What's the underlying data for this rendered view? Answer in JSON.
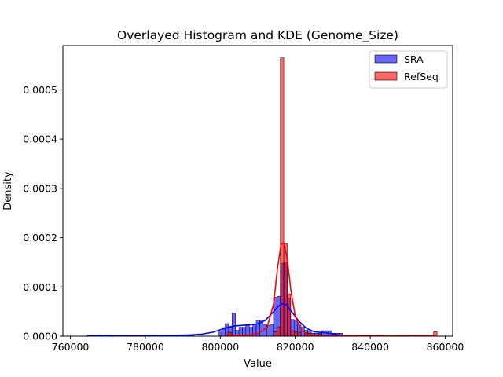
{
  "chart_data": {
    "type": "bar",
    "title": "Overlayed Histogram and KDE (Genome_Size)",
    "xlabel": "Value",
    "ylabel": "Density",
    "xlim": [
      758000,
      862000
    ],
    "ylim": [
      0,
      0.00059
    ],
    "x_ticks": [
      760000,
      780000,
      800000,
      820000,
      840000,
      860000
    ],
    "x_tick_labels": [
      "760000",
      "780000",
      "800000",
      "820000",
      "840000",
      "860000"
    ],
    "y_ticks": [
      0,
      0.0001,
      0.0002,
      0.0003,
      0.0004,
      0.0005
    ],
    "y_tick_labels": [
      "0.0000",
      "0.0001",
      "0.0002",
      "0.0003",
      "0.0004",
      "0.0005"
    ],
    "grid": false,
    "legend_position": "top-right",
    "series": [
      {
        "name": "SRA",
        "kind": "histogram",
        "color": "#0000ff",
        "bin_width": 920,
        "bins": [
          [
            764500,
            1.2e-06
          ],
          [
            765420,
            1.2e-06
          ],
          [
            766340,
            1.2e-06
          ],
          [
            767260,
            1.2e-06
          ],
          [
            768180,
            1.2e-06
          ],
          [
            769100,
            2.5e-06
          ],
          [
            770020,
            2.5e-06
          ],
          [
            770940,
            1.2e-06
          ],
          [
            775540,
            1.2e-06
          ],
          [
            778300,
            1.2e-06
          ],
          [
            780140,
            1.2e-06
          ],
          [
            785660,
            1.2e-06
          ],
          [
            787500,
            1.2e-06
          ],
          [
            791180,
            1.2e-06
          ],
          [
            792100,
            1.2e-06
          ],
          [
            799460,
            8.5e-06
          ],
          [
            800380,
            1.75e-05
          ],
          [
            801300,
            2.55e-05
          ],
          [
            802220,
            1.8e-05
          ],
          [
            803140,
            4.7e-05
          ],
          [
            804060,
            1.2e-05
          ],
          [
            804980,
            1.8e-05
          ],
          [
            805900,
            1.8e-05
          ],
          [
            806820,
            2.4e-05
          ],
          [
            807740,
            1.8e-05
          ],
          [
            808660,
            2.4e-05
          ],
          [
            809580,
            3.3e-05
          ],
          [
            810500,
            3.1e-05
          ],
          [
            811420,
            2.4e-05
          ],
          [
            812340,
            2.2e-05
          ],
          [
            813260,
            2.4e-05
          ],
          [
            814180,
            7.9e-05
          ],
          [
            815100,
            8.1e-05
          ],
          [
            816020,
            0.000148
          ],
          [
            816940,
            0.000149
          ],
          [
            817860,
            7.7e-05
          ],
          [
            818780,
            3.4e-05
          ],
          [
            819700,
            3.3e-05
          ],
          [
            820620,
            2.3e-05
          ],
          [
            821540,
            1.8e-05
          ],
          [
            822460,
            1.2e-05
          ],
          [
            823380,
            1.1e-05
          ],
          [
            824300,
            6e-06
          ],
          [
            825220,
            6e-06
          ],
          [
            826140,
            6e-06
          ],
          [
            827060,
            1.1e-05
          ],
          [
            827980,
            1.1e-05
          ],
          [
            828900,
            1.1e-05
          ],
          [
            829820,
            6e-06
          ],
          [
            830740,
            6e-06
          ],
          [
            831660,
            6e-06
          ]
        ],
        "kde": [
          [
            764500,
            1e-06
          ],
          [
            768000,
            1.5e-06
          ],
          [
            772000,
            1.2e-06
          ],
          [
            776000,
            1e-06
          ],
          [
            780000,
            1e-06
          ],
          [
            784000,
            1.3e-06
          ],
          [
            788000,
            1.6e-06
          ],
          [
            792000,
            2.5e-06
          ],
          [
            795000,
            4e-06
          ],
          [
            798000,
            8e-06
          ],
          [
            800000,
            1.3e-05
          ],
          [
            802000,
            1.8e-05
          ],
          [
            804000,
            2.1e-05
          ],
          [
            806000,
            2.2e-05
          ],
          [
            808000,
            2.3e-05
          ],
          [
            810000,
            2.5e-05
          ],
          [
            812000,
            3.2e-05
          ],
          [
            814000,
            4.8e-05
          ],
          [
            815500,
            6.1e-05
          ],
          [
            816500,
            6.6e-05
          ],
          [
            817500,
            6.4e-05
          ],
          [
            819000,
            5e-05
          ],
          [
            821000,
            3e-05
          ],
          [
            823000,
            1.6e-05
          ],
          [
            825000,
            9e-06
          ],
          [
            827000,
            7.5e-06
          ],
          [
            829000,
            6e-06
          ],
          [
            831000,
            3e-06
          ],
          [
            832500,
            1e-06
          ]
        ]
      },
      {
        "name": "RefSeq",
        "kind": "histogram",
        "color": "#ff0000",
        "bin_width": 920,
        "bins": [
          [
            802000,
            8e-06
          ],
          [
            814200,
            9e-06
          ],
          [
            815100,
            1.9e-05
          ],
          [
            816020,
            0.000565
          ],
          [
            816940,
            0.000188
          ],
          [
            817860,
            8.6e-05
          ],
          [
            818780,
            1.1e-05
          ],
          [
            819700,
            9e-06
          ],
          [
            820620,
            8e-06
          ],
          [
            822460,
            7e-06
          ],
          [
            823380,
            6e-06
          ],
          [
            826140,
            4e-06
          ],
          [
            856900,
            9e-06
          ]
        ],
        "kde": [
          [
            801000,
            1e-06
          ],
          [
            804000,
            2e-06
          ],
          [
            807000,
            2e-06
          ],
          [
            810000,
            5e-06
          ],
          [
            812500,
            1.8e-05
          ],
          [
            814200,
            6.5e-05
          ],
          [
            815300,
            0.00014
          ],
          [
            816200,
            0.000186
          ],
          [
            816900,
            0.00019
          ],
          [
            817800,
            0.00016
          ],
          [
            818800,
            9.5e-05
          ],
          [
            820000,
            4e-05
          ],
          [
            821500,
            1.3e-05
          ],
          [
            823000,
            4e-06
          ],
          [
            826000,
            1e-06
          ],
          [
            834000,
            8e-07
          ],
          [
            845000,
            6e-07
          ],
          [
            852000,
            1e-06
          ],
          [
            857200,
            1e-06
          ]
        ]
      }
    ]
  }
}
